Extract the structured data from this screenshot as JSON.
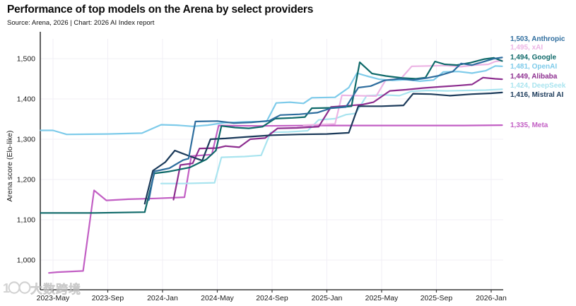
{
  "title": "Performance of top models on the Arena by select providers",
  "source": "Source: Arena, 2026 | Chart: 2026 AI Index report",
  "watermark": {
    "icon": "1〇〇",
    "text": "大数跨境"
  },
  "chart_data": {
    "type": "line",
    "title": "Performance of top models on the Arena by select providers",
    "subtitle": "Source: Arena, 2026 | Chart: 2026 AI Index report",
    "xlabel": "",
    "ylabel": "Arena score (Elo-like)",
    "x_unit": "month index, 0 = 2023-Apr",
    "ylim": [
      950,
      1520
    ],
    "yticks": [
      1000,
      1100,
      1200,
      1300,
      1400,
      1500
    ],
    "ytick_labels": [
      "1,000",
      "1,100",
      "1,200",
      "1,300",
      "1,400",
      "1,500"
    ],
    "xticks": [
      1,
      5,
      9,
      13,
      17,
      21,
      25,
      29,
      33
    ],
    "xtick_labels": [
      "2023-May",
      "2023-Sep",
      "2024-Jan",
      "2024-May",
      "2024-Sep",
      "2025-Jan",
      "2025-May",
      "2025-Sep",
      "2026-Jan"
    ],
    "grid": true,
    "legend_position": "right-end-labels",
    "series": [
      {
        "name": "Meta",
        "color": "#c25fc4",
        "final_value": 1335,
        "end_label": "1,335, Meta",
        "points": [
          [
            0.7,
            968
          ],
          [
            1.3,
            970
          ],
          [
            3.2,
            973
          ],
          [
            4.0,
            1173
          ],
          [
            4.9,
            1148
          ],
          [
            6.5,
            1151
          ],
          [
            8.5,
            1153
          ],
          [
            10.6,
            1156
          ],
          [
            11.1,
            1258
          ],
          [
            12.6,
            1262
          ],
          [
            13.1,
            1334
          ],
          [
            16,
            1333
          ],
          [
            20,
            1334
          ],
          [
            24,
            1334
          ],
          [
            28,
            1334
          ],
          [
            31,
            1334
          ],
          [
            33.8,
            1335
          ]
        ]
      },
      {
        "name": "DeepSeek",
        "color": "#a9e4ef",
        "final_value": 1424,
        "end_label": "1,424, DeepSeek",
        "points": [
          [
            8.9,
            1190
          ],
          [
            10.5,
            1190
          ],
          [
            12.8,
            1192
          ],
          [
            13.3,
            1255
          ],
          [
            15,
            1257
          ],
          [
            16.2,
            1260
          ],
          [
            16.9,
            1317
          ],
          [
            18.2,
            1318
          ],
          [
            19.6,
            1321
          ],
          [
            20.4,
            1348
          ],
          [
            21.6,
            1351
          ],
          [
            22.4,
            1361
          ],
          [
            23.1,
            1364
          ],
          [
            23.9,
            1408
          ],
          [
            25.2,
            1410
          ],
          [
            26.3,
            1408
          ],
          [
            27.2,
            1419
          ],
          [
            28.4,
            1421
          ],
          [
            29.8,
            1420
          ],
          [
            31.2,
            1421
          ],
          [
            32.6,
            1422
          ],
          [
            33.8,
            1424
          ]
        ]
      },
      {
        "name": "xAI",
        "color": "#ecb4e4",
        "final_value": 1495,
        "end_label": "1,495, xAI",
        "points": [
          [
            19.3,
            1335
          ],
          [
            21.6,
            1338
          ],
          [
            22.1,
            1409
          ],
          [
            23.3,
            1408
          ],
          [
            24.6,
            1407
          ],
          [
            25.3,
            1447
          ],
          [
            26.4,
            1450
          ],
          [
            27.2,
            1481
          ],
          [
            28.4,
            1482
          ],
          [
            29.6,
            1483
          ],
          [
            30.8,
            1480
          ],
          [
            31.8,
            1484
          ],
          [
            32.8,
            1486
          ],
          [
            33.3,
            1493
          ],
          [
            33.8,
            1495
          ]
        ]
      },
      {
        "name": "OpenAI",
        "color": "#7ecbea",
        "final_value": 1481,
        "end_label": "1,481, OpenAI",
        "points": [
          [
            0.1,
            1322
          ],
          [
            1,
            1322
          ],
          [
            2,
            1312
          ],
          [
            5,
            1313
          ],
          [
            7.5,
            1315
          ],
          [
            8.9,
            1336
          ],
          [
            10,
            1335
          ],
          [
            11.2,
            1332
          ],
          [
            12.3,
            1335
          ],
          [
            13.5,
            1341
          ],
          [
            15,
            1343
          ],
          [
            16.6,
            1344
          ],
          [
            17.3,
            1390
          ],
          [
            18.3,
            1392
          ],
          [
            19.3,
            1389
          ],
          [
            19.9,
            1403
          ],
          [
            21.6,
            1404
          ],
          [
            22.6,
            1428
          ],
          [
            23.2,
            1464
          ],
          [
            23.9,
            1457
          ],
          [
            24.8,
            1449
          ],
          [
            25.8,
            1446
          ],
          [
            26.8,
            1448
          ],
          [
            27.8,
            1444
          ],
          [
            28.8,
            1447
          ],
          [
            29.5,
            1467
          ],
          [
            30.6,
            1468
          ],
          [
            31.6,
            1464
          ],
          [
            32.6,
            1470
          ],
          [
            33.3,
            1482
          ],
          [
            33.8,
            1481
          ]
        ]
      },
      {
        "name": "Alibaba",
        "color": "#8d2e8f",
        "final_value": 1449,
        "end_label": "1,449, Alibaba",
        "points": [
          [
            9.8,
            1150
          ],
          [
            10.3,
            1236
          ],
          [
            11.2,
            1240
          ],
          [
            11.7,
            1277
          ],
          [
            13,
            1278
          ],
          [
            13.6,
            1283
          ],
          [
            14.6,
            1280
          ],
          [
            15.4,
            1300
          ],
          [
            16.5,
            1303
          ],
          [
            17.4,
            1327
          ],
          [
            18.8,
            1328
          ],
          [
            20.4,
            1331
          ],
          [
            21.3,
            1380
          ],
          [
            22.5,
            1383
          ],
          [
            23.6,
            1386
          ],
          [
            24.4,
            1392
          ],
          [
            25.6,
            1420
          ],
          [
            26.8,
            1423
          ],
          [
            28,
            1427
          ],
          [
            29.2,
            1430
          ],
          [
            30.5,
            1433
          ],
          [
            31.6,
            1436
          ],
          [
            32.4,
            1453
          ],
          [
            33.3,
            1450
          ],
          [
            33.8,
            1449
          ]
        ]
      },
      {
        "name": "Mistral AI",
        "color": "#1b3a5a",
        "final_value": 1416,
        "end_label": "1,416, Mistral AI",
        "points": [
          [
            7.7,
            1140
          ],
          [
            8.3,
            1222
          ],
          [
            9.2,
            1243
          ],
          [
            9.9,
            1272
          ],
          [
            10.9,
            1259
          ],
          [
            11.9,
            1247
          ],
          [
            12.5,
            1300
          ],
          [
            13.6,
            1302
          ],
          [
            15.2,
            1306
          ],
          [
            17,
            1310
          ],
          [
            19,
            1312
          ],
          [
            21,
            1313
          ],
          [
            22.6,
            1316
          ],
          [
            23.3,
            1382
          ],
          [
            25,
            1382
          ],
          [
            26.6,
            1384
          ],
          [
            27.3,
            1413
          ],
          [
            28.6,
            1412
          ],
          [
            30,
            1408
          ],
          [
            31.6,
            1412
          ],
          [
            33,
            1414
          ],
          [
            33.8,
            1416
          ]
        ]
      },
      {
        "name": "Google",
        "color": "#0e6969",
        "final_value": 1494,
        "end_label": "1,494, Google",
        "points": [
          [
            0.1,
            1117
          ],
          [
            4,
            1117
          ],
          [
            7.7,
            1119
          ],
          [
            8.4,
            1215
          ],
          [
            9.5,
            1220
          ],
          [
            11,
            1230
          ],
          [
            12.2,
            1250
          ],
          [
            12.9,
            1272
          ],
          [
            13.3,
            1333
          ],
          [
            14.3,
            1329
          ],
          [
            15.3,
            1327
          ],
          [
            16.3,
            1331
          ],
          [
            17.2,
            1351
          ],
          [
            18.5,
            1353
          ],
          [
            19.4,
            1355
          ],
          [
            19.9,
            1377
          ],
          [
            21.5,
            1378
          ],
          [
            22.8,
            1382
          ],
          [
            23.4,
            1491
          ],
          [
            24.3,
            1463
          ],
          [
            25.3,
            1457
          ],
          [
            26.5,
            1452
          ],
          [
            27.5,
            1450
          ],
          [
            28.2,
            1453
          ],
          [
            28.9,
            1493
          ],
          [
            29.6,
            1486
          ],
          [
            30.5,
            1484
          ],
          [
            31.5,
            1490
          ],
          [
            32.5,
            1499
          ],
          [
            33.2,
            1502
          ],
          [
            33.8,
            1494
          ]
        ]
      },
      {
        "name": "Anthropic",
        "color": "#2e6d9e",
        "final_value": 1503,
        "end_label": "1,503, Anthropic",
        "points": [
          [
            8,
            1149
          ],
          [
            8.4,
            1220
          ],
          [
            9.5,
            1228
          ],
          [
            10.5,
            1248
          ],
          [
            10.9,
            1252
          ],
          [
            11.4,
            1344
          ],
          [
            13,
            1345
          ],
          [
            14.2,
            1340
          ],
          [
            15.5,
            1342
          ],
          [
            16.8,
            1346
          ],
          [
            17.6,
            1360
          ],
          [
            19,
            1362
          ],
          [
            20.3,
            1366
          ],
          [
            21.3,
            1377
          ],
          [
            22.4,
            1380
          ],
          [
            23.3,
            1428
          ],
          [
            24.2,
            1432
          ],
          [
            25.2,
            1446
          ],
          [
            26.3,
            1450
          ],
          [
            27.3,
            1447
          ],
          [
            28.3,
            1452
          ],
          [
            29.2,
            1458
          ],
          [
            30.2,
            1468
          ],
          [
            30.8,
            1488
          ],
          [
            31.6,
            1484
          ],
          [
            32.4,
            1492
          ],
          [
            33.2,
            1500
          ],
          [
            33.8,
            1503
          ]
        ]
      }
    ],
    "end_label_order": [
      "Anthropic",
      "xAI",
      "Google",
      "OpenAI",
      "Alibaba",
      "DeepSeek",
      "Mistral AI",
      "Meta"
    ]
  }
}
